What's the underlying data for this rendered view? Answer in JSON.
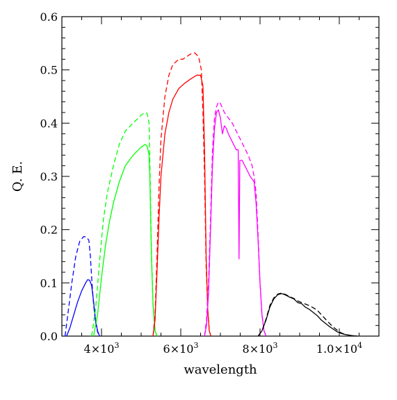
{
  "chart_data": {
    "type": "line",
    "title": "",
    "xlabel": "wavelength",
    "ylabel": "Q. E.",
    "xlim": [
      3000,
      11000
    ],
    "ylim": [
      0,
      0.6
    ],
    "grid": false,
    "legend": "none",
    "xticks": [
      {
        "value": 4000,
        "mantissa": "4",
        "exp": "3"
      },
      {
        "value": 6000,
        "mantissa": "6",
        "exp": "3"
      },
      {
        "value": 8000,
        "mantissa": "8",
        "exp": "3"
      },
      {
        "value": 10000,
        "mantissa": "1.0",
        "exp": "4"
      }
    ],
    "yticks": [
      {
        "value": 0.0,
        "label": "0.0"
      },
      {
        "value": 0.1,
        "label": "0.1"
      },
      {
        "value": 0.2,
        "label": "0.2"
      },
      {
        "value": 0.3,
        "label": "0.3"
      },
      {
        "value": 0.4,
        "label": "0.4"
      },
      {
        "value": 0.5,
        "label": "0.5"
      },
      {
        "value": 0.6,
        "label": "0.6"
      }
    ],
    "series": [
      {
        "color": "#0000ff",
        "dash": false,
        "x": [
          3120,
          3200,
          3300,
          3400,
          3500,
          3600,
          3650,
          3700,
          3750,
          3800,
          3850,
          3900,
          3950
        ],
        "y": [
          0.0,
          0.015,
          0.04,
          0.065,
          0.085,
          0.1,
          0.106,
          0.105,
          0.095,
          0.065,
          0.03,
          0.01,
          0.0
        ]
      },
      {
        "color": "#0000ff",
        "dash": true,
        "x": [
          3080,
          3150,
          3250,
          3350,
          3450,
          3550,
          3620,
          3680,
          3720,
          3760,
          3800,
          3850,
          3900,
          3950
        ],
        "y": [
          0.0,
          0.04,
          0.1,
          0.15,
          0.178,
          0.187,
          0.186,
          0.18,
          0.15,
          0.1,
          0.06,
          0.025,
          0.008,
          0.0
        ]
      },
      {
        "color": "#00ff00",
        "dash": false,
        "x": [
          3800,
          3900,
          4000,
          4100,
          4200,
          4300,
          4450,
          4600,
          4800,
          5000,
          5100,
          5150,
          5200,
          5220,
          5260,
          5300,
          5350,
          5400
        ],
        "y": [
          0.0,
          0.04,
          0.11,
          0.17,
          0.215,
          0.25,
          0.29,
          0.32,
          0.34,
          0.355,
          0.36,
          0.357,
          0.34,
          0.3,
          0.15,
          0.06,
          0.01,
          0.0
        ]
      },
      {
        "color": "#00ff00",
        "dash": true,
        "x": [
          3750,
          3850,
          3950,
          4050,
          4150,
          4300,
          4450,
          4600,
          4800,
          5000,
          5100,
          5150,
          5200,
          5220,
          5260,
          5300,
          5350,
          5400
        ],
        "y": [
          0.0,
          0.05,
          0.14,
          0.22,
          0.27,
          0.32,
          0.36,
          0.385,
          0.4,
          0.415,
          0.42,
          0.418,
          0.4,
          0.33,
          0.16,
          0.06,
          0.01,
          0.0
        ]
      },
      {
        "color": "#ff0000",
        "dash": false,
        "x": [
          5300,
          5350,
          5400,
          5450,
          5500,
          5600,
          5700,
          5800,
          5950,
          6100,
          6250,
          6400,
          6500,
          6560,
          6600,
          6640,
          6680,
          6720,
          6760
        ],
        "y": [
          0.0,
          0.03,
          0.12,
          0.22,
          0.3,
          0.38,
          0.42,
          0.445,
          0.465,
          0.475,
          0.483,
          0.49,
          0.49,
          0.47,
          0.35,
          0.15,
          0.05,
          0.01,
          0.0
        ]
      },
      {
        "color": "#ff0000",
        "dash": true,
        "x": [
          5300,
          5350,
          5400,
          5450,
          5500,
          5600,
          5700,
          5800,
          5950,
          6050,
          6150,
          6250,
          6350,
          6450,
          6520,
          6560,
          6600,
          6640,
          6680,
          6720,
          6760
        ],
        "y": [
          0.0,
          0.04,
          0.15,
          0.28,
          0.37,
          0.45,
          0.49,
          0.51,
          0.52,
          0.52,
          0.525,
          0.53,
          0.532,
          0.525,
          0.5,
          0.42,
          0.3,
          0.13,
          0.05,
          0.01,
          0.0
        ]
      },
      {
        "color": "#ff00ff",
        "dash": false,
        "x": [
          6600,
          6650,
          6700,
          6750,
          6800,
          6850,
          6900,
          6950,
          7000,
          7050,
          7100,
          7150,
          7200,
          7300,
          7400,
          7450,
          7470,
          7490,
          7510,
          7550,
          7650,
          7750,
          7850,
          7900,
          7950,
          8000,
          8050,
          8100,
          8150
        ],
        "y": [
          0.0,
          0.02,
          0.08,
          0.2,
          0.32,
          0.39,
          0.42,
          0.425,
          0.41,
          0.38,
          0.395,
          0.39,
          0.38,
          0.365,
          0.35,
          0.35,
          0.145,
          0.33,
          0.33,
          0.33,
          0.315,
          0.3,
          0.29,
          0.25,
          0.18,
          0.1,
          0.04,
          0.01,
          0.0
        ]
      },
      {
        "color": "#ff00ff",
        "dash": true,
        "x": [
          6600,
          6650,
          6700,
          6750,
          6800,
          6850,
          6900,
          6950,
          7000,
          7100,
          7200,
          7300,
          7400,
          7500,
          7600,
          7700,
          7800,
          7850,
          7900,
          7950,
          8000,
          8050,
          8100,
          8150
        ],
        "y": [
          0.0,
          0.03,
          0.1,
          0.22,
          0.35,
          0.41,
          0.43,
          0.44,
          0.437,
          0.42,
          0.41,
          0.4,
          0.385,
          0.37,
          0.355,
          0.34,
          0.32,
          0.3,
          0.27,
          0.19,
          0.1,
          0.04,
          0.01,
          0.0
        ]
      },
      {
        "color": "#000000",
        "dash": false,
        "x": [
          7950,
          8050,
          8150,
          8250,
          8350,
          8450,
          8550,
          8650,
          8750,
          8850,
          8950,
          9050,
          9150,
          9250,
          9350,
          9450,
          9550,
          9650,
          9750,
          9850,
          9950,
          10050,
          10150,
          10300,
          10450
        ],
        "y": [
          0.0,
          0.01,
          0.03,
          0.055,
          0.07,
          0.078,
          0.08,
          0.077,
          0.073,
          0.07,
          0.063,
          0.061,
          0.054,
          0.05,
          0.044,
          0.038,
          0.03,
          0.024,
          0.018,
          0.013,
          0.008,
          0.005,
          0.003,
          0.001,
          0.0
        ]
      },
      {
        "color": "#000000",
        "dash": true,
        "x": [
          7950,
          8050,
          8150,
          8250,
          8350,
          8450,
          8550,
          8650,
          8750,
          8850,
          8950,
          9050,
          9150,
          9250,
          9350,
          9450,
          9550,
          9650,
          9750,
          9850,
          9950,
          10050,
          10150,
          10300,
          10450
        ],
        "y": [
          0.0,
          0.01,
          0.032,
          0.058,
          0.072,
          0.079,
          0.081,
          0.078,
          0.074,
          0.071,
          0.066,
          0.063,
          0.06,
          0.057,
          0.053,
          0.048,
          0.04,
          0.032,
          0.024,
          0.017,
          0.011,
          0.006,
          0.003,
          0.001,
          0.0
        ]
      }
    ]
  }
}
